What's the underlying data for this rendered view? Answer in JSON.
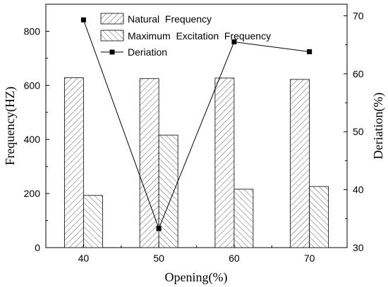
{
  "chart_data": {
    "type": "bar",
    "categories": [
      "40",
      "50",
      "60",
      "70"
    ],
    "xlabel": "Opening(%)",
    "ylabel": "Frequency(HZ)",
    "y2label": "Deriation(%)",
    "ylim": [
      0,
      900
    ],
    "y2lim": [
      30,
      72
    ],
    "yticks": [
      "0",
      "200",
      "400",
      "600",
      "800"
    ],
    "y2ticks": [
      "30",
      "40",
      "50",
      "60",
      "70"
    ],
    "grid": false,
    "legend_position": "top-center",
    "series": [
      {
        "name": "Natural  Frequency",
        "axis": "left",
        "kind": "bar",
        "pattern": "diagonal-right",
        "values": [
          628,
          625,
          627,
          622
        ]
      },
      {
        "name": "Maximum  Excitation  Frequency",
        "axis": "left",
        "kind": "bar",
        "pattern": "diagonal-left",
        "values": [
          193,
          416,
          216,
          226
        ]
      },
      {
        "name": "Deriation",
        "axis": "right",
        "kind": "line",
        "marker": "square",
        "values": [
          69.3,
          33.3,
          65.5,
          63.8
        ]
      }
    ]
  }
}
